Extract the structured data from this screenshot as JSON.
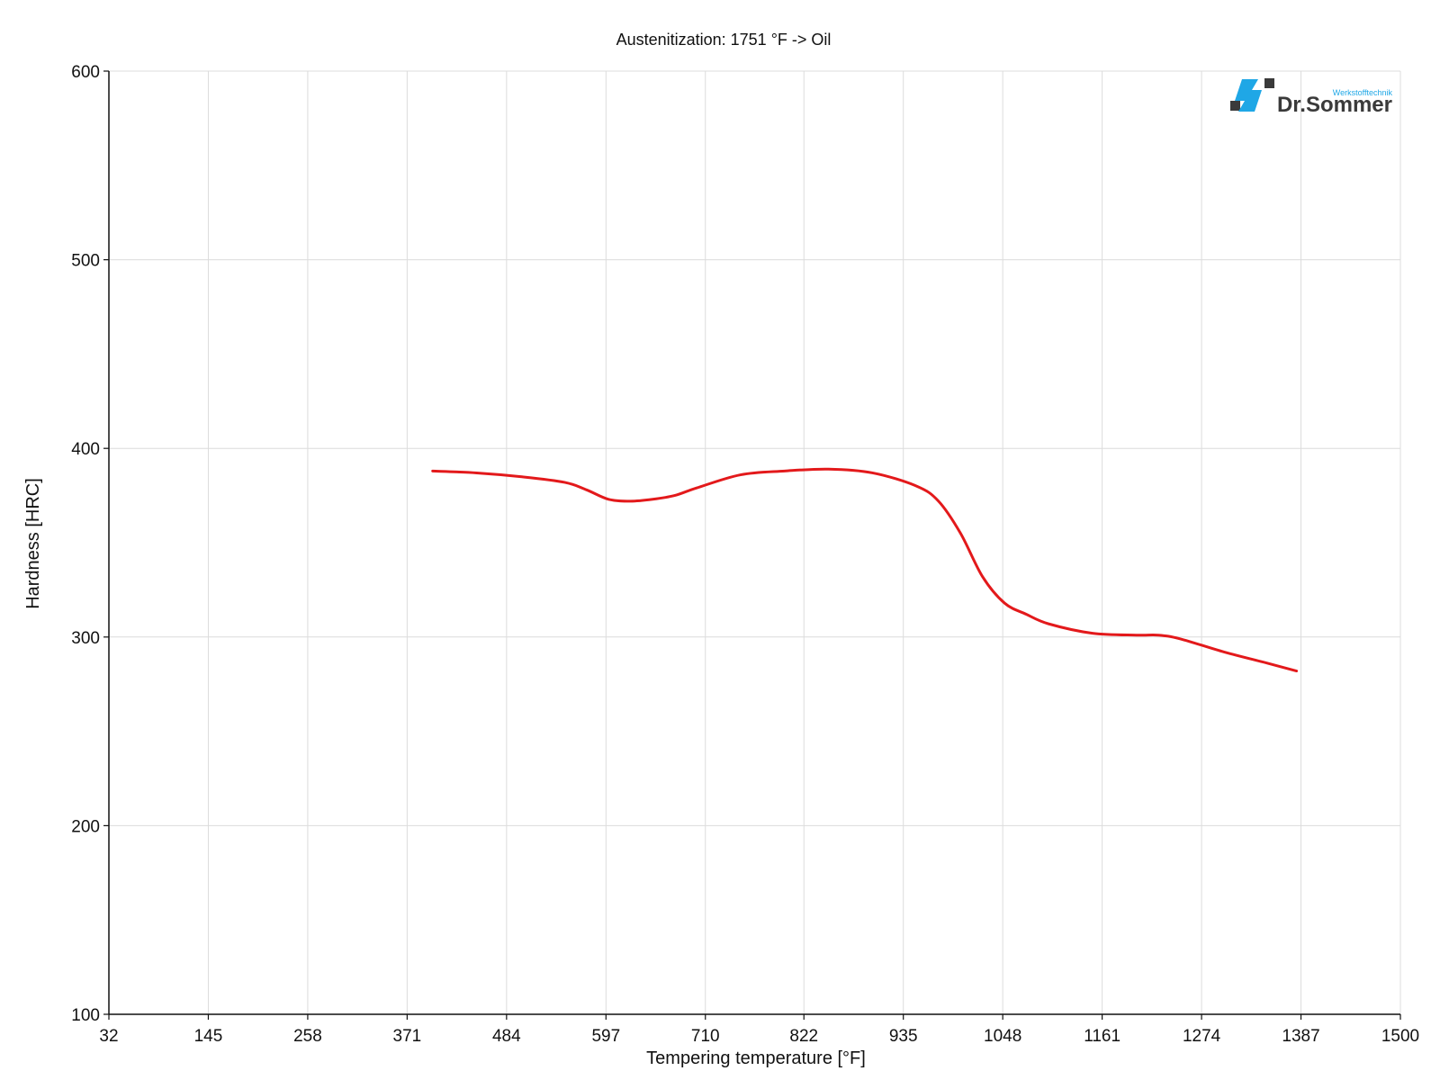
{
  "chart_data": {
    "type": "line",
    "title": "Austenitization: 1751 °F -> Oil",
    "xlabel": "Tempering temperature [°F]",
    "ylabel": "Hardness [HRC]",
    "xlim": [
      32,
      1500
    ],
    "ylim": [
      100,
      600
    ],
    "x_ticks": [
      "32",
      "145",
      "258",
      "371",
      "484",
      "597",
      "710",
      "822",
      "935",
      "1048",
      "1161",
      "1274",
      "1387",
      "1500"
    ],
    "y_ticks": [
      "100",
      "200",
      "300",
      "400",
      "500",
      "600"
    ],
    "grid": true,
    "series": [
      {
        "color": "#e3191b",
        "x": [
          400,
          450,
          500,
          550,
          575,
          600,
          625,
          650,
          675,
          700,
          750,
          800,
          850,
          900,
          950,
          975,
          1000,
          1025,
          1050,
          1075,
          1100,
          1150,
          1200,
          1225,
          1250,
          1300,
          1350,
          1382
        ],
        "y": [
          388,
          387,
          385,
          382,
          378,
          373,
          372,
          373,
          375,
          379,
          386,
          388,
          389,
          387,
          380,
          372,
          355,
          332,
          318,
          312,
          307,
          302,
          301,
          301,
          299,
          292,
          286,
          282
        ]
      }
    ]
  },
  "logo": {
    "name": "Dr.Sommer",
    "subtitle": "Werkstofftechnik"
  }
}
